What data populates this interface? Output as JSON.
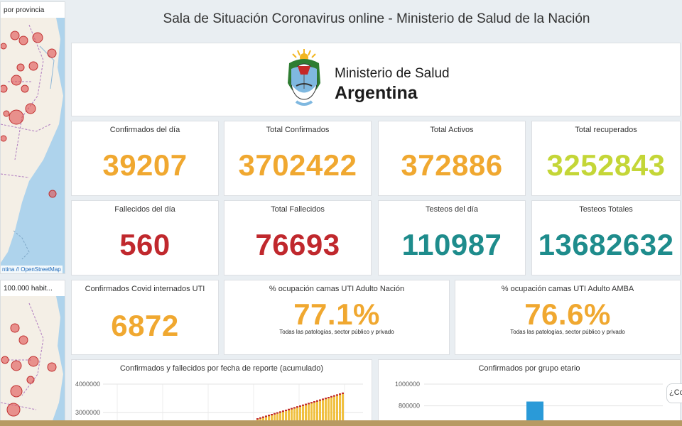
{
  "title": "Sala de Situación Coronavirus online - Ministerio de Salud de la Nación",
  "maps": {
    "top_title": "por provincia",
    "bottom_title": "100.000 habit...",
    "attribution": "ntina // OpenStreetMap"
  },
  "logo": {
    "line1": "Ministerio de Salud",
    "line2": "Argentina",
    "emblem_icon": "argentina-coat-of-arms-icon"
  },
  "stats": [
    {
      "label": "Confirmados del día",
      "value": "39207",
      "color": "#f0a830"
    },
    {
      "label": "Total Confirmados",
      "value": "3702422",
      "color": "#f0a830"
    },
    {
      "label": "Total Activos",
      "value": "372886",
      "color": "#f0a830"
    },
    {
      "label": "Total recuperados",
      "value": "3252843",
      "color": "#c4d637"
    },
    {
      "label": "Fallecidos del día",
      "value": "560",
      "color": "#c0282d"
    },
    {
      "label": "Total Fallecidos",
      "value": "76693",
      "color": "#c0282d"
    },
    {
      "label": "Testeos del día",
      "value": "110987",
      "color": "#1e8c8c"
    },
    {
      "label": "Testeos Totales",
      "value": "13682632",
      "color": "#1e8c8c"
    }
  ],
  "uti": {
    "label": "Confirmados Covid internados UTI",
    "value": "6872"
  },
  "occupancy": [
    {
      "label": "% ocupación camas UTI Adulto Nación",
      "value": "77.1%",
      "note": "Todas las patologías, sector público y privado"
    },
    {
      "label": "% ocupación camas UTI Adulto AMBA",
      "value": "76.6%",
      "note": "Todas las patologías, sector público y privado"
    }
  ],
  "charts": {
    "left_title": "Confirmados y fallecidos por fecha de reporte (acumulado)",
    "right_title": "Confirmados por grupo etario"
  },
  "help_label": "¿Co",
  "chart_data": [
    {
      "type": "bar",
      "title": "Confirmados y fallecidos por fecha de reporte (acumulado)",
      "yticks": [
        "4000000",
        "3000000"
      ],
      "ylim": [
        2800000,
        4000000
      ],
      "values": [
        2800000,
        2830000,
        2860000,
        2890000,
        2920000,
        2950000,
        2980000,
        3010000,
        3040000,
        3070000,
        3100000,
        3130000,
        3160000,
        3190000,
        3220000,
        3250000,
        3280000,
        3310000,
        3340000,
        3370000,
        3400000,
        3430000,
        3460000,
        3490000,
        3520000,
        3550000,
        3580000,
        3610000,
        3640000,
        3670000,
        3702422
      ],
      "colors": {
        "confirmados": "#f0c040",
        "fallecidos": "#c0282d"
      },
      "grid": true
    },
    {
      "type": "bar",
      "title": "Confirmados por grupo etario",
      "yticks": [
        "1000000",
        "800000"
      ],
      "ylim": [
        700000,
        1000000
      ],
      "values": [
        840000
      ],
      "colors": {
        "bars": "#2a9ad8"
      },
      "grid": true
    }
  ]
}
